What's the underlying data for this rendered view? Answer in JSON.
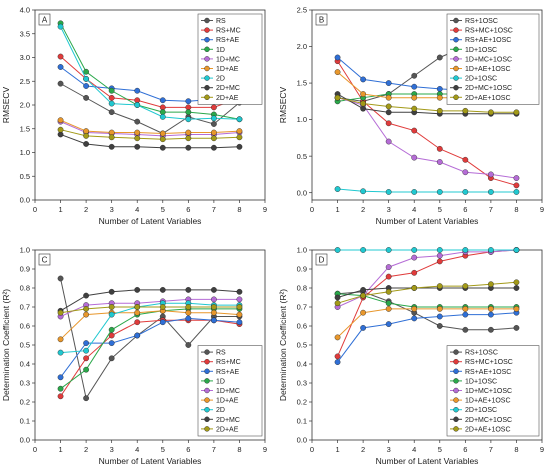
{
  "chart_data": [
    {
      "type": "line",
      "panel_label": "A",
      "xlabel": "Number of Latent Variables",
      "ylabel": "RMSECV",
      "xlim": [
        0,
        9
      ],
      "ylim": [
        0,
        4.0
      ],
      "xticks": [
        0,
        1,
        2,
        3,
        4,
        5,
        6,
        7,
        8,
        9
      ],
      "yticks": [
        0.0,
        0.5,
        1.0,
        1.5,
        2.0,
        2.5,
        3.0,
        3.5,
        4.0
      ],
      "legend_position": "top-right",
      "x": [
        1,
        2,
        3,
        4,
        5,
        6,
        7,
        8
      ],
      "series": [
        {
          "name": "RS",
          "color": "#555555",
          "values": [
            2.45,
            2.15,
            1.85,
            1.65,
            1.4,
            1.75,
            1.6,
            2.05
          ]
        },
        {
          "name": "RS+MC",
          "color": "#e03b3b",
          "values": [
            3.02,
            2.55,
            2.15,
            2.1,
            1.95,
            1.95,
            1.95,
            2.15
          ]
        },
        {
          "name": "RS+AE",
          "color": "#2f6fd6",
          "values": [
            2.8,
            2.4,
            2.35,
            2.3,
            2.1,
            2.08,
            2.12,
            2.25
          ]
        },
        {
          "name": "1D",
          "color": "#2aa84a",
          "values": [
            3.72,
            2.7,
            2.3,
            2.0,
            1.85,
            1.85,
            1.8,
            1.7
          ]
        },
        {
          "name": "1D+MC",
          "color": "#b56cd6",
          "values": [
            1.65,
            1.42,
            1.4,
            1.38,
            1.35,
            1.38,
            1.38,
            1.42
          ]
        },
        {
          "name": "1D+AE",
          "color": "#e8972c",
          "values": [
            1.68,
            1.45,
            1.42,
            1.42,
            1.4,
            1.42,
            1.42,
            1.45
          ]
        },
        {
          "name": "2D",
          "color": "#20c8d0",
          "values": [
            3.65,
            2.55,
            2.03,
            2.0,
            1.75,
            1.7,
            1.72,
            1.7
          ]
        },
        {
          "name": "2D+MC",
          "color": "#404040",
          "values": [
            1.38,
            1.18,
            1.12,
            1.12,
            1.1,
            1.1,
            1.1,
            1.12
          ]
        },
        {
          "name": "2D+AE",
          "color": "#a39a18",
          "values": [
            1.48,
            1.35,
            1.32,
            1.3,
            1.28,
            1.3,
            1.3,
            1.32
          ]
        }
      ]
    },
    {
      "type": "line",
      "panel_label": "B",
      "xlabel": "Number of Latent Variables",
      "ylabel": "RMSECV",
      "xlim": [
        0,
        9
      ],
      "ylim": [
        -0.1,
        2.5
      ],
      "xticks": [
        0,
        1,
        2,
        3,
        4,
        5,
        6,
        7,
        8,
        9
      ],
      "yticks": [
        0.0,
        0.5,
        1.0,
        1.5,
        2.0,
        2.5
      ],
      "legend_position": "top-right",
      "x": [
        1,
        2,
        3,
        4,
        5,
        6,
        7,
        8
      ],
      "series": [
        {
          "name": "RS+1OSC",
          "color": "#555555",
          "values": [
            1.3,
            1.25,
            1.35,
            1.6,
            1.85,
            2.0,
            2.02,
            2.0
          ]
        },
        {
          "name": "RS+MC+1OSC",
          "color": "#e03b3b",
          "values": [
            1.8,
            1.25,
            0.95,
            0.85,
            0.6,
            0.45,
            0.2,
            0.1
          ]
        },
        {
          "name": "RS+AE+1OSC",
          "color": "#2f6fd6",
          "values": [
            1.85,
            1.55,
            1.5,
            1.45,
            1.42,
            1.4,
            1.4,
            1.38
          ]
        },
        {
          "name": "1D+1OSC",
          "color": "#2aa84a",
          "values": [
            1.25,
            1.3,
            1.35,
            1.35,
            1.35,
            1.35,
            1.35,
            1.32
          ]
        },
        {
          "name": "1D+MC+1OSC",
          "color": "#b56cd6",
          "values": [
            1.3,
            1.2,
            0.7,
            0.48,
            0.42,
            0.28,
            0.25,
            0.2
          ]
        },
        {
          "name": "1D+AE+1OSC",
          "color": "#e8972c",
          "values": [
            1.65,
            1.35,
            1.3,
            1.3,
            1.3,
            1.3,
            1.3,
            1.3
          ]
        },
        {
          "name": "2D+1OSC",
          "color": "#20c8d0",
          "values": [
            0.05,
            0.02,
            0.01,
            0.01,
            0.01,
            0.01,
            0.01,
            0.01
          ]
        },
        {
          "name": "2D+MC+1OSC",
          "color": "#404040",
          "values": [
            1.35,
            1.15,
            1.1,
            1.1,
            1.08,
            1.08,
            1.08,
            1.08
          ]
        },
        {
          "name": "2D+AE+1OSC",
          "color": "#a39a18",
          "values": [
            1.3,
            1.22,
            1.18,
            1.15,
            1.12,
            1.12,
            1.1,
            1.1
          ]
        }
      ]
    },
    {
      "type": "line",
      "panel_label": "C",
      "xlabel": "Number of Latent Variables",
      "ylabel": "Determination Coefficient (R²)",
      "xlim": [
        0,
        9
      ],
      "ylim": [
        0.0,
        1.0
      ],
      "xticks": [
        0,
        1,
        2,
        3,
        4,
        5,
        6,
        7,
        8,
        9
      ],
      "yticks": [
        0.0,
        0.1,
        0.2,
        0.3,
        0.4,
        0.5,
        0.6,
        0.7,
        0.8,
        0.9,
        1.0
      ],
      "legend_position": "bottom-right",
      "x": [
        1,
        2,
        3,
        4,
        5,
        6,
        7,
        8
      ],
      "series": [
        {
          "name": "RS",
          "color": "#555555",
          "values": [
            0.85,
            0.22,
            0.43,
            0.55,
            0.65,
            0.5,
            0.65,
            0.65
          ]
        },
        {
          "name": "RS+MC",
          "color": "#e03b3b",
          "values": [
            0.23,
            0.43,
            0.55,
            0.62,
            0.63,
            0.63,
            0.63,
            0.61
          ]
        },
        {
          "name": "RS+AE",
          "color": "#2f6fd6",
          "values": [
            0.33,
            0.51,
            0.51,
            0.55,
            0.62,
            0.64,
            0.63,
            0.62
          ]
        },
        {
          "name": "1D",
          "color": "#2aa84a",
          "values": [
            0.27,
            0.37,
            0.58,
            0.66,
            0.68,
            0.69,
            0.69,
            0.69
          ]
        },
        {
          "name": "1D+MC",
          "color": "#b56cd6",
          "values": [
            0.65,
            0.71,
            0.72,
            0.72,
            0.73,
            0.74,
            0.74,
            0.74
          ]
        },
        {
          "name": "1D+AE",
          "color": "#e8972c",
          "values": [
            0.53,
            0.66,
            0.67,
            0.67,
            0.68,
            0.67,
            0.67,
            0.66
          ]
        },
        {
          "name": "2D",
          "color": "#20c8d0",
          "values": [
            0.46,
            0.47,
            0.66,
            0.7,
            0.72,
            0.72,
            0.71,
            0.71
          ]
        },
        {
          "name": "2D+MC",
          "color": "#404040",
          "values": [
            0.68,
            0.76,
            0.78,
            0.79,
            0.79,
            0.79,
            0.79,
            0.78
          ]
        },
        {
          "name": "2D+AE",
          "color": "#a39a18",
          "values": [
            0.67,
            0.69,
            0.7,
            0.7,
            0.7,
            0.7,
            0.7,
            0.7
          ]
        }
      ]
    },
    {
      "type": "line",
      "panel_label": "D",
      "xlabel": "Number of Latent Variables",
      "ylabel": "Determination Coefficient (R²)",
      "xlim": [
        0,
        9
      ],
      "ylim": [
        0.0,
        1.0
      ],
      "xticks": [
        0,
        1,
        2,
        3,
        4,
        5,
        6,
        7,
        8,
        9
      ],
      "yticks": [
        0.0,
        0.1,
        0.2,
        0.3,
        0.4,
        0.5,
        0.6,
        0.7,
        0.8,
        0.9,
        1.0
      ],
      "legend_position": "bottom-right",
      "x": [
        1,
        2,
        3,
        4,
        5,
        6,
        7,
        8
      ],
      "series": [
        {
          "name": "RS+1OSC",
          "color": "#555555",
          "values": [
            0.77,
            0.78,
            0.73,
            0.67,
            0.6,
            0.58,
            0.58,
            0.59
          ]
        },
        {
          "name": "RS+MC+1OSC",
          "color": "#e03b3b",
          "values": [
            0.44,
            0.75,
            0.86,
            0.88,
            0.94,
            0.97,
            0.99,
            1.0
          ]
        },
        {
          "name": "RS+AE+1OSC",
          "color": "#2f6fd6",
          "values": [
            0.41,
            0.59,
            0.61,
            0.64,
            0.65,
            0.66,
            0.66,
            0.67
          ]
        },
        {
          "name": "1D+1OSC",
          "color": "#2aa84a",
          "values": [
            0.77,
            0.76,
            0.72,
            0.7,
            0.7,
            0.7,
            0.7,
            0.7
          ]
        },
        {
          "name": "1D+MC+1OSC",
          "color": "#b56cd6",
          "values": [
            0.7,
            0.76,
            0.91,
            0.96,
            0.97,
            0.99,
            0.99,
            1.0
          ]
        },
        {
          "name": "1D+AE+1OSC",
          "color": "#e8972c",
          "values": [
            0.54,
            0.67,
            0.69,
            0.69,
            0.69,
            0.69,
            0.69,
            0.69
          ]
        },
        {
          "name": "2D+1OSC",
          "color": "#20c8d0",
          "values": [
            1.0,
            1.0,
            1.0,
            1.0,
            1.0,
            1.0,
            1.0,
            1.0
          ]
        },
        {
          "name": "2D+MC+1OSC",
          "color": "#404040",
          "values": [
            0.75,
            0.79,
            0.8,
            0.8,
            0.8,
            0.8,
            0.8,
            0.8
          ]
        },
        {
          "name": "2D+AE+1OSC",
          "color": "#a39a18",
          "values": [
            0.72,
            0.76,
            0.78,
            0.8,
            0.81,
            0.81,
            0.82,
            0.83
          ]
        }
      ]
    }
  ]
}
